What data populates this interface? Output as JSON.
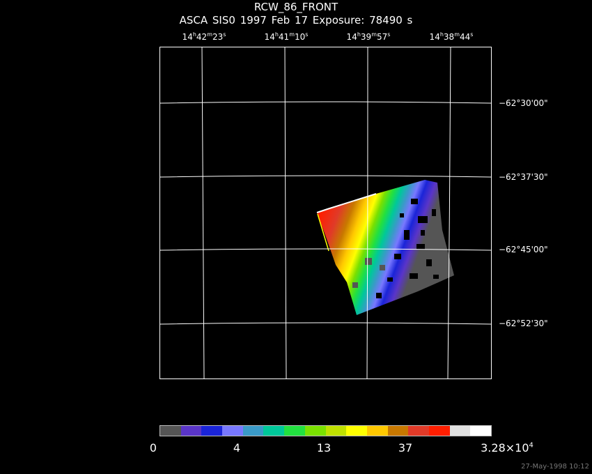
{
  "header": {
    "title": "RCW_86_FRONT",
    "subtitle": "ASCA SIS0   1997 Feb 17    Exposure: 78490 s"
  },
  "ra_ticks": [
    {
      "h": "14",
      "m": "42",
      "s": "23"
    },
    {
      "h": "14",
      "m": "41",
      "s": "10"
    },
    {
      "h": "14",
      "m": "39",
      "s": "57"
    },
    {
      "h": "14",
      "m": "38",
      "s": "44"
    }
  ],
  "dec_ticks": [
    "−62°30'00\"",
    "−62°37'30\"",
    "−62°45'00\"",
    "−62°52'30\""
  ],
  "colorbar": {
    "colors": [
      "#555555",
      "#5a35c8",
      "#1a24d8",
      "#7878ff",
      "#3a9ac8",
      "#00c89a",
      "#22e040",
      "#7ae000",
      "#bfe000",
      "#ffff00",
      "#ffc800",
      "#c87800",
      "#e03a28",
      "#ff1e00",
      "#e0e0e0",
      "#ffffff"
    ],
    "labels": [
      "0",
      "4",
      "13",
      "37"
    ],
    "max_mantissa": "3.28×10",
    "max_exp": "4"
  },
  "footer": {
    "timestamp": "27-May-1998 10:12"
  }
}
